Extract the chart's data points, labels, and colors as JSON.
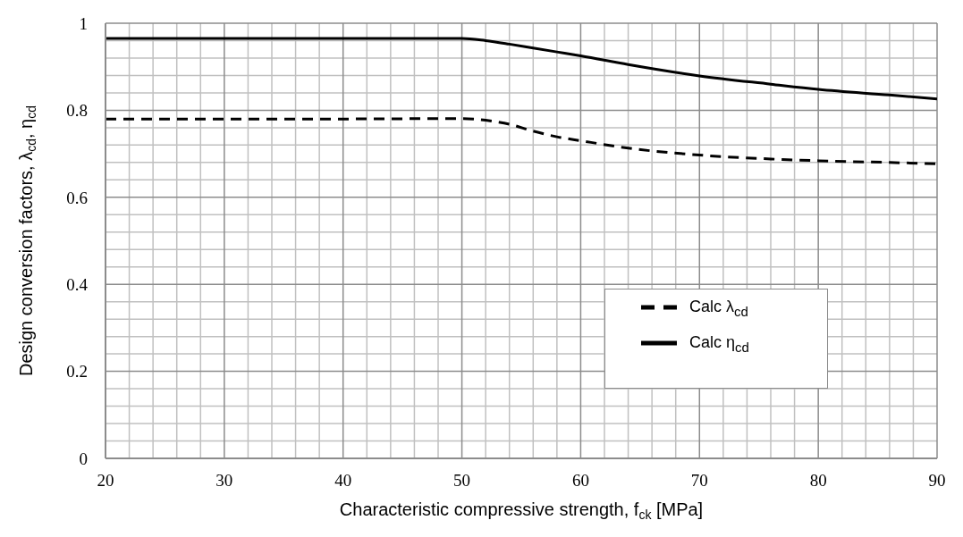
{
  "chart_data": {
    "type": "line",
    "xlabel": "Characteristic compressive strength, f$_{ck}$  [MPa]",
    "ylabel": "Design conversion factors, λ$_{cd}$, η$_{cd}$",
    "x": [
      20,
      30,
      40,
      50,
      52,
      54,
      56,
      58,
      60,
      64,
      70,
      76,
      80,
      86,
      90
    ],
    "series": [
      {
        "name": "Calc λ$_{cd}$",
        "color": "#000000",
        "line_style": "dashed",
        "values": [
          0.78,
          0.78,
          0.78,
          0.781,
          0.777,
          0.768,
          0.752,
          0.739,
          0.73,
          0.713,
          0.697,
          0.688,
          0.684,
          0.68,
          0.677
        ]
      },
      {
        "name": "Calc η$_{cd}$",
        "color": "#000000",
        "line_style": "solid",
        "values": [
          0.965,
          0.965,
          0.965,
          0.965,
          0.96,
          0.952,
          0.943,
          0.934,
          0.925,
          0.905,
          0.879,
          0.86,
          0.848,
          0.835,
          0.826
        ]
      }
    ],
    "xlim": [
      20,
      90
    ],
    "xticks": [
      20,
      30,
      40,
      50,
      60,
      70,
      80,
      90
    ],
    "ylim": [
      0,
      1
    ],
    "yticks": [
      0,
      0.2,
      0.4,
      0.6,
      0.8,
      1
    ],
    "grid": true,
    "legend": "right",
    "marker": "none"
  }
}
